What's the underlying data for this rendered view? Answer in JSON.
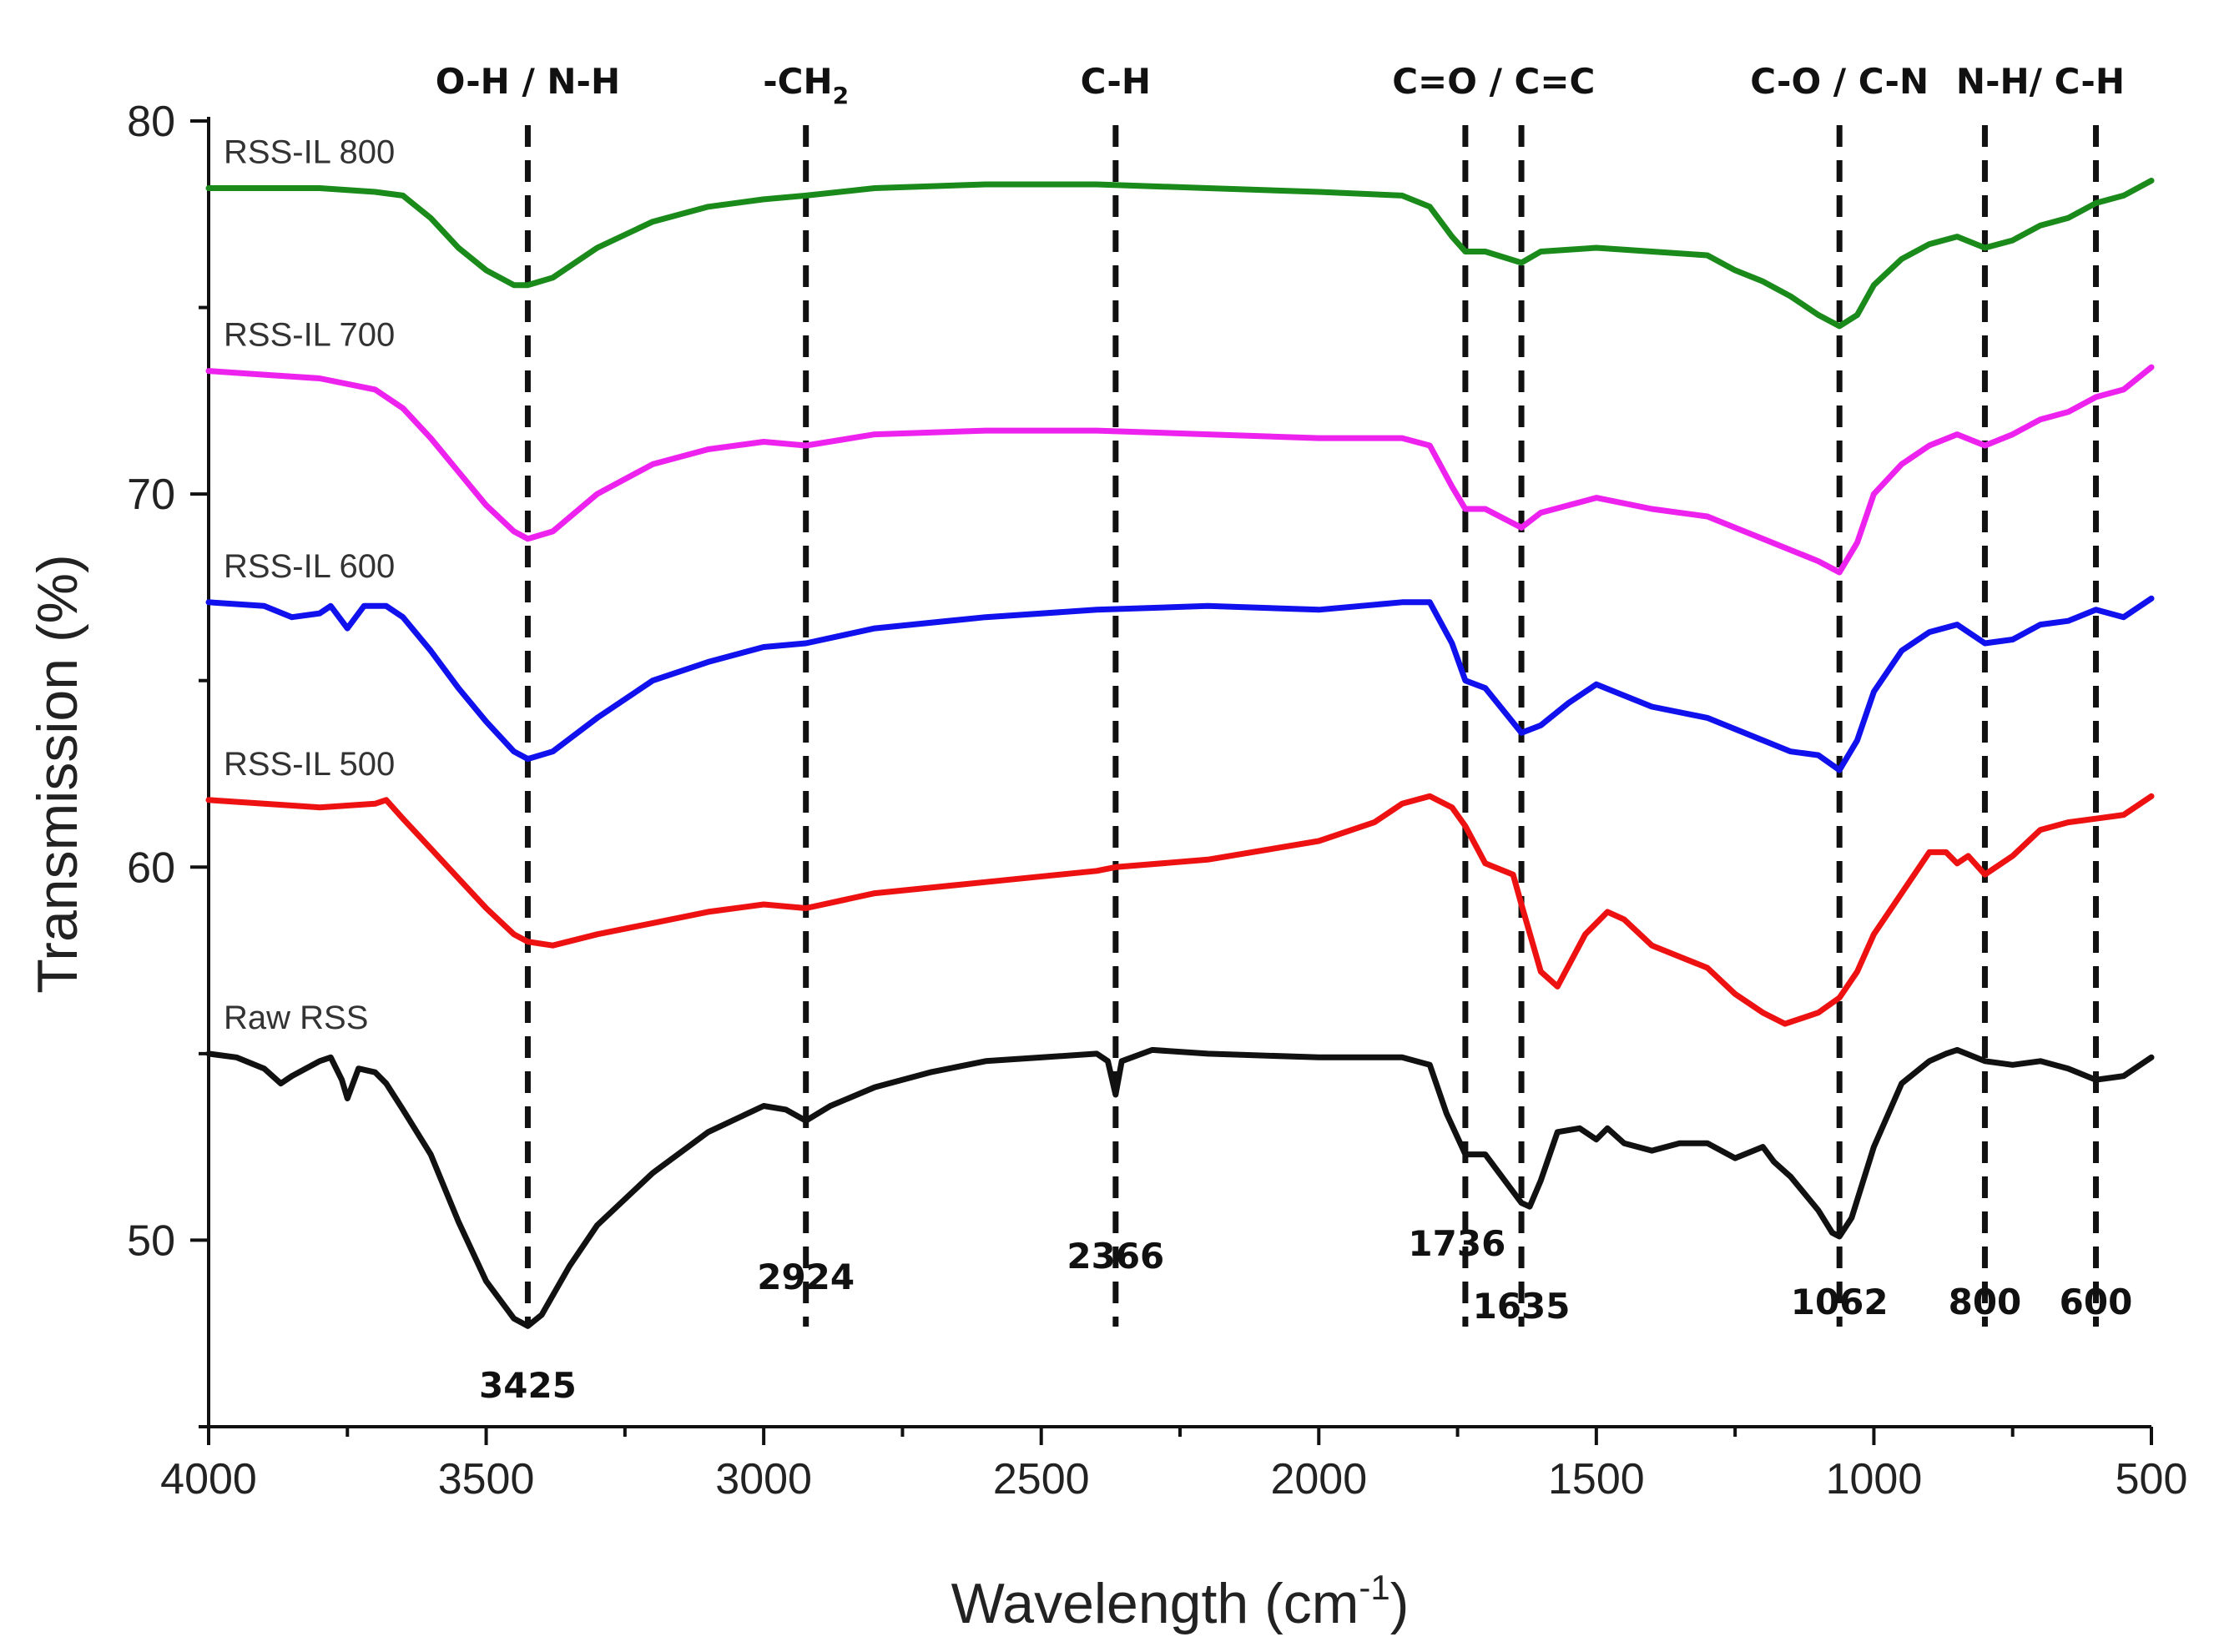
{
  "chart_data": {
    "type": "line",
    "title": "",
    "xlabel": "Wavelength (cm",
    "xlabel_sup": "-1",
    "xlabel_suffix": ")",
    "ylabel": "Transmission (%)",
    "xlim": [
      4000,
      500
    ],
    "ylim": [
      45,
      80
    ],
    "x_ticks": [
      4000,
      3500,
      3000,
      2500,
      2000,
      1500,
      1000,
      500
    ],
    "y_ticks": [
      50,
      60,
      70,
      80
    ],
    "band_markers": [
      {
        "x": 3425,
        "band": "O-H / N-H",
        "value": "3425"
      },
      {
        "x": 2924,
        "band": "-CH",
        "band_sub": "2",
        "value": "2924"
      },
      {
        "x": 2366,
        "band": "C-H",
        "value": "2366"
      },
      {
        "x": 1736,
        "band": "",
        "value": "1736"
      },
      {
        "x": 1635,
        "band": "",
        "value": "1635"
      },
      {
        "x": 1062,
        "band": "C-O / C-N",
        "value": "1062"
      },
      {
        "x": 800,
        "band": "",
        "value": "800"
      },
      {
        "x": 600,
        "band": "",
        "value": "600"
      }
    ],
    "band_group_labels": [
      {
        "text": "C=O / C=C",
        "x_center": 1685
      },
      {
        "text": "N-H/ C-H",
        "x_center": 700
      }
    ],
    "series": [
      {
        "name": "RSS-IL 800",
        "color": "#1a8a1a",
        "points": [
          [
            4000,
            78.2
          ],
          [
            3900,
            78.2
          ],
          [
            3800,
            78.2
          ],
          [
            3700,
            78.1
          ],
          [
            3650,
            78.0
          ],
          [
            3600,
            77.4
          ],
          [
            3550,
            76.6
          ],
          [
            3500,
            76.0
          ],
          [
            3450,
            75.6
          ],
          [
            3425,
            75.6
          ],
          [
            3380,
            75.8
          ],
          [
            3300,
            76.6
          ],
          [
            3200,
            77.3
          ],
          [
            3100,
            77.7
          ],
          [
            3000,
            77.9
          ],
          [
            2924,
            78.0
          ],
          [
            2800,
            78.2
          ],
          [
            2600,
            78.3
          ],
          [
            2400,
            78.3
          ],
          [
            2200,
            78.2
          ],
          [
            2000,
            78.1
          ],
          [
            1850,
            78.0
          ],
          [
            1800,
            77.7
          ],
          [
            1760,
            76.9
          ],
          [
            1736,
            76.5
          ],
          [
            1700,
            76.5
          ],
          [
            1635,
            76.2
          ],
          [
            1600,
            76.5
          ],
          [
            1500,
            76.6
          ],
          [
            1400,
            76.5
          ],
          [
            1300,
            76.4
          ],
          [
            1250,
            76.0
          ],
          [
            1200,
            75.7
          ],
          [
            1150,
            75.3
          ],
          [
            1100,
            74.8
          ],
          [
            1062,
            74.5
          ],
          [
            1030,
            74.8
          ],
          [
            1000,
            75.6
          ],
          [
            950,
            76.3
          ],
          [
            900,
            76.7
          ],
          [
            850,
            76.9
          ],
          [
            800,
            76.6
          ],
          [
            750,
            76.8
          ],
          [
            700,
            77.2
          ],
          [
            650,
            77.4
          ],
          [
            600,
            77.8
          ],
          [
            550,
            78.0
          ],
          [
            500,
            78.4
          ]
        ]
      },
      {
        "name": "RSS-IL 700",
        "color": "#ee22ee",
        "points": [
          [
            4000,
            73.3
          ],
          [
            3900,
            73.2
          ],
          [
            3800,
            73.1
          ],
          [
            3700,
            72.8
          ],
          [
            3650,
            72.3
          ],
          [
            3600,
            71.5
          ],
          [
            3550,
            70.6
          ],
          [
            3500,
            69.7
          ],
          [
            3450,
            69.0
          ],
          [
            3425,
            68.8
          ],
          [
            3380,
            69.0
          ],
          [
            3300,
            70.0
          ],
          [
            3200,
            70.8
          ],
          [
            3100,
            71.2
          ],
          [
            3000,
            71.4
          ],
          [
            2924,
            71.3
          ],
          [
            2800,
            71.6
          ],
          [
            2600,
            71.7
          ],
          [
            2400,
            71.7
          ],
          [
            2200,
            71.6
          ],
          [
            2000,
            71.5
          ],
          [
            1850,
            71.5
          ],
          [
            1800,
            71.3
          ],
          [
            1760,
            70.2
          ],
          [
            1736,
            69.6
          ],
          [
            1700,
            69.6
          ],
          [
            1635,
            69.1
          ],
          [
            1600,
            69.5
          ],
          [
            1500,
            69.9
          ],
          [
            1400,
            69.6
          ],
          [
            1300,
            69.4
          ],
          [
            1250,
            69.1
          ],
          [
            1200,
            68.8
          ],
          [
            1150,
            68.5
          ],
          [
            1100,
            68.2
          ],
          [
            1062,
            67.9
          ],
          [
            1030,
            68.7
          ],
          [
            1000,
            70.0
          ],
          [
            950,
            70.8
          ],
          [
            900,
            71.3
          ],
          [
            850,
            71.6
          ],
          [
            800,
            71.3
          ],
          [
            750,
            71.6
          ],
          [
            700,
            72.0
          ],
          [
            650,
            72.2
          ],
          [
            600,
            72.6
          ],
          [
            550,
            72.8
          ],
          [
            500,
            73.4
          ]
        ]
      },
      {
        "name": "RSS-IL 600",
        "color": "#1111ee",
        "points": [
          [
            4000,
            67.1
          ],
          [
            3900,
            67.0
          ],
          [
            3850,
            66.7
          ],
          [
            3800,
            66.8
          ],
          [
            3780,
            67.0
          ],
          [
            3750,
            66.4
          ],
          [
            3720,
            67.0
          ],
          [
            3680,
            67.0
          ],
          [
            3650,
            66.7
          ],
          [
            3600,
            65.8
          ],
          [
            3550,
            64.8
          ],
          [
            3500,
            63.9
          ],
          [
            3450,
            63.1
          ],
          [
            3425,
            62.9
          ],
          [
            3380,
            63.1
          ],
          [
            3300,
            64.0
          ],
          [
            3200,
            65.0
          ],
          [
            3100,
            65.5
          ],
          [
            3000,
            65.9
          ],
          [
            2924,
            66.0
          ],
          [
            2800,
            66.4
          ],
          [
            2600,
            66.7
          ],
          [
            2400,
            66.9
          ],
          [
            2200,
            67.0
          ],
          [
            2000,
            66.9
          ],
          [
            1850,
            67.1
          ],
          [
            1800,
            67.1
          ],
          [
            1760,
            66.0
          ],
          [
            1736,
            65.0
          ],
          [
            1700,
            64.8
          ],
          [
            1635,
            63.6
          ],
          [
            1600,
            63.8
          ],
          [
            1550,
            64.4
          ],
          [
            1500,
            64.9
          ],
          [
            1450,
            64.6
          ],
          [
            1400,
            64.3
          ],
          [
            1300,
            64.0
          ],
          [
            1200,
            63.4
          ],
          [
            1150,
            63.1
          ],
          [
            1100,
            63.0
          ],
          [
            1062,
            62.6
          ],
          [
            1030,
            63.4
          ],
          [
            1000,
            64.7
          ],
          [
            950,
            65.8
          ],
          [
            900,
            66.3
          ],
          [
            850,
            66.5
          ],
          [
            800,
            66.0
          ],
          [
            750,
            66.1
          ],
          [
            700,
            66.5
          ],
          [
            650,
            66.6
          ],
          [
            600,
            66.9
          ],
          [
            550,
            66.7
          ],
          [
            500,
            67.2
          ]
        ]
      },
      {
        "name": "RSS-IL 500",
        "color": "#ee1111",
        "points": [
          [
            4000,
            61.8
          ],
          [
            3900,
            61.7
          ],
          [
            3800,
            61.6
          ],
          [
            3700,
            61.7
          ],
          [
            3680,
            61.8
          ],
          [
            3650,
            61.3
          ],
          [
            3600,
            60.5
          ],
          [
            3550,
            59.7
          ],
          [
            3500,
            58.9
          ],
          [
            3450,
            58.2
          ],
          [
            3425,
            58.0
          ],
          [
            3380,
            57.9
          ],
          [
            3300,
            58.2
          ],
          [
            3200,
            58.5
          ],
          [
            3100,
            58.8
          ],
          [
            3000,
            59.0
          ],
          [
            2924,
            58.9
          ],
          [
            2800,
            59.3
          ],
          [
            2600,
            59.6
          ],
          [
            2400,
            59.9
          ],
          [
            2366,
            60.0
          ],
          [
            2200,
            60.2
          ],
          [
            2000,
            60.7
          ],
          [
            1900,
            61.2
          ],
          [
            1850,
            61.7
          ],
          [
            1800,
            61.9
          ],
          [
            1760,
            61.6
          ],
          [
            1736,
            61.1
          ],
          [
            1700,
            60.1
          ],
          [
            1650,
            59.8
          ],
          [
            1635,
            59.0
          ],
          [
            1600,
            57.2
          ],
          [
            1570,
            56.8
          ],
          [
            1520,
            58.2
          ],
          [
            1480,
            58.8
          ],
          [
            1450,
            58.6
          ],
          [
            1400,
            57.9
          ],
          [
            1350,
            57.6
          ],
          [
            1300,
            57.3
          ],
          [
            1250,
            56.6
          ],
          [
            1200,
            56.1
          ],
          [
            1160,
            55.8
          ],
          [
            1100,
            56.1
          ],
          [
            1062,
            56.5
          ],
          [
            1030,
            57.2
          ],
          [
            1000,
            58.2
          ],
          [
            950,
            59.3
          ],
          [
            900,
            60.4
          ],
          [
            870,
            60.4
          ],
          [
            850,
            60.1
          ],
          [
            830,
            60.3
          ],
          [
            800,
            59.8
          ],
          [
            750,
            60.3
          ],
          [
            700,
            61.0
          ],
          [
            650,
            61.2
          ],
          [
            600,
            61.3
          ],
          [
            550,
            61.4
          ],
          [
            500,
            61.9
          ]
        ]
      },
      {
        "name": "Raw RSS",
        "color": "#111111",
        "points": [
          [
            4000,
            55.0
          ],
          [
            3950,
            54.9
          ],
          [
            3900,
            54.6
          ],
          [
            3870,
            54.2
          ],
          [
            3850,
            54.4
          ],
          [
            3800,
            54.8
          ],
          [
            3780,
            54.9
          ],
          [
            3760,
            54.3
          ],
          [
            3750,
            53.8
          ],
          [
            3730,
            54.6
          ],
          [
            3700,
            54.5
          ],
          [
            3680,
            54.2
          ],
          [
            3650,
            53.5
          ],
          [
            3600,
            52.3
          ],
          [
            3550,
            50.5
          ],
          [
            3500,
            48.9
          ],
          [
            3450,
            47.9
          ],
          [
            3425,
            47.7
          ],
          [
            3400,
            48.0
          ],
          [
            3350,
            49.3
          ],
          [
            3300,
            50.4
          ],
          [
            3200,
            51.8
          ],
          [
            3100,
            52.9
          ],
          [
            3000,
            53.6
          ],
          [
            2960,
            53.5
          ],
          [
            2924,
            53.2
          ],
          [
            2880,
            53.6
          ],
          [
            2800,
            54.1
          ],
          [
            2700,
            54.5
          ],
          [
            2600,
            54.8
          ],
          [
            2400,
            55.0
          ],
          [
            2380,
            54.8
          ],
          [
            2366,
            53.9
          ],
          [
            2355,
            54.8
          ],
          [
            2300,
            55.1
          ],
          [
            2200,
            55.0
          ],
          [
            2000,
            54.9
          ],
          [
            1850,
            54.9
          ],
          [
            1800,
            54.7
          ],
          [
            1770,
            53.4
          ],
          [
            1736,
            52.3
          ],
          [
            1700,
            52.3
          ],
          [
            1680,
            51.9
          ],
          [
            1635,
            51.0
          ],
          [
            1620,
            50.9
          ],
          [
            1600,
            51.6
          ],
          [
            1570,
            52.9
          ],
          [
            1530,
            53.0
          ],
          [
            1500,
            52.7
          ],
          [
            1480,
            53.0
          ],
          [
            1450,
            52.6
          ],
          [
            1400,
            52.4
          ],
          [
            1350,
            52.6
          ],
          [
            1300,
            52.6
          ],
          [
            1250,
            52.2
          ],
          [
            1200,
            52.5
          ],
          [
            1180,
            52.1
          ],
          [
            1150,
            51.7
          ],
          [
            1100,
            50.8
          ],
          [
            1075,
            50.2
          ],
          [
            1062,
            50.1
          ],
          [
            1040,
            50.6
          ],
          [
            1000,
            52.5
          ],
          [
            950,
            54.2
          ],
          [
            900,
            54.8
          ],
          [
            870,
            55.0
          ],
          [
            850,
            55.1
          ],
          [
            800,
            54.8
          ],
          [
            750,
            54.7
          ],
          [
            700,
            54.8
          ],
          [
            650,
            54.6
          ],
          [
            600,
            54.3
          ],
          [
            550,
            54.4
          ],
          [
            500,
            54.9
          ]
        ]
      }
    ]
  }
}
